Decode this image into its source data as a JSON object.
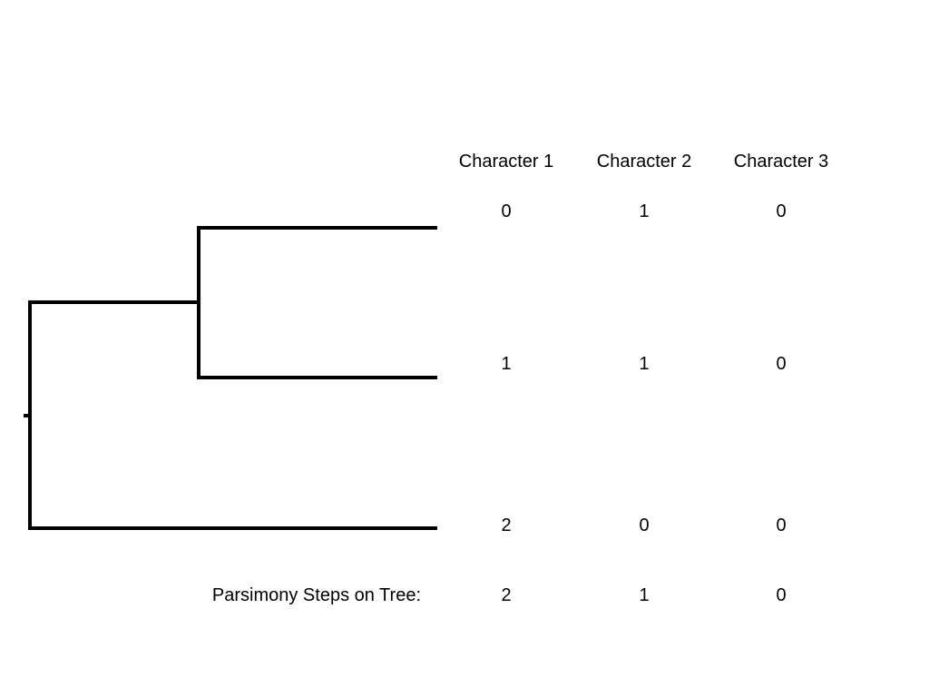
{
  "columns": [
    "Character 1",
    "Character 2",
    "Character 3"
  ],
  "taxa": [
    {
      "values": [
        "0",
        "1",
        "0"
      ]
    },
    {
      "values": [
        "1",
        "1",
        "0"
      ]
    },
    {
      "values": [
        "2",
        "0",
        "0"
      ]
    }
  ],
  "tree_topology": "((taxon1,taxon2),taxon3)",
  "footer": {
    "label": "Parsimony Steps on Tree:",
    "steps": [
      "2",
      "1",
      "0"
    ]
  },
  "colors": {
    "line": "#000000",
    "text": "#000000",
    "background": "#ffffff"
  }
}
